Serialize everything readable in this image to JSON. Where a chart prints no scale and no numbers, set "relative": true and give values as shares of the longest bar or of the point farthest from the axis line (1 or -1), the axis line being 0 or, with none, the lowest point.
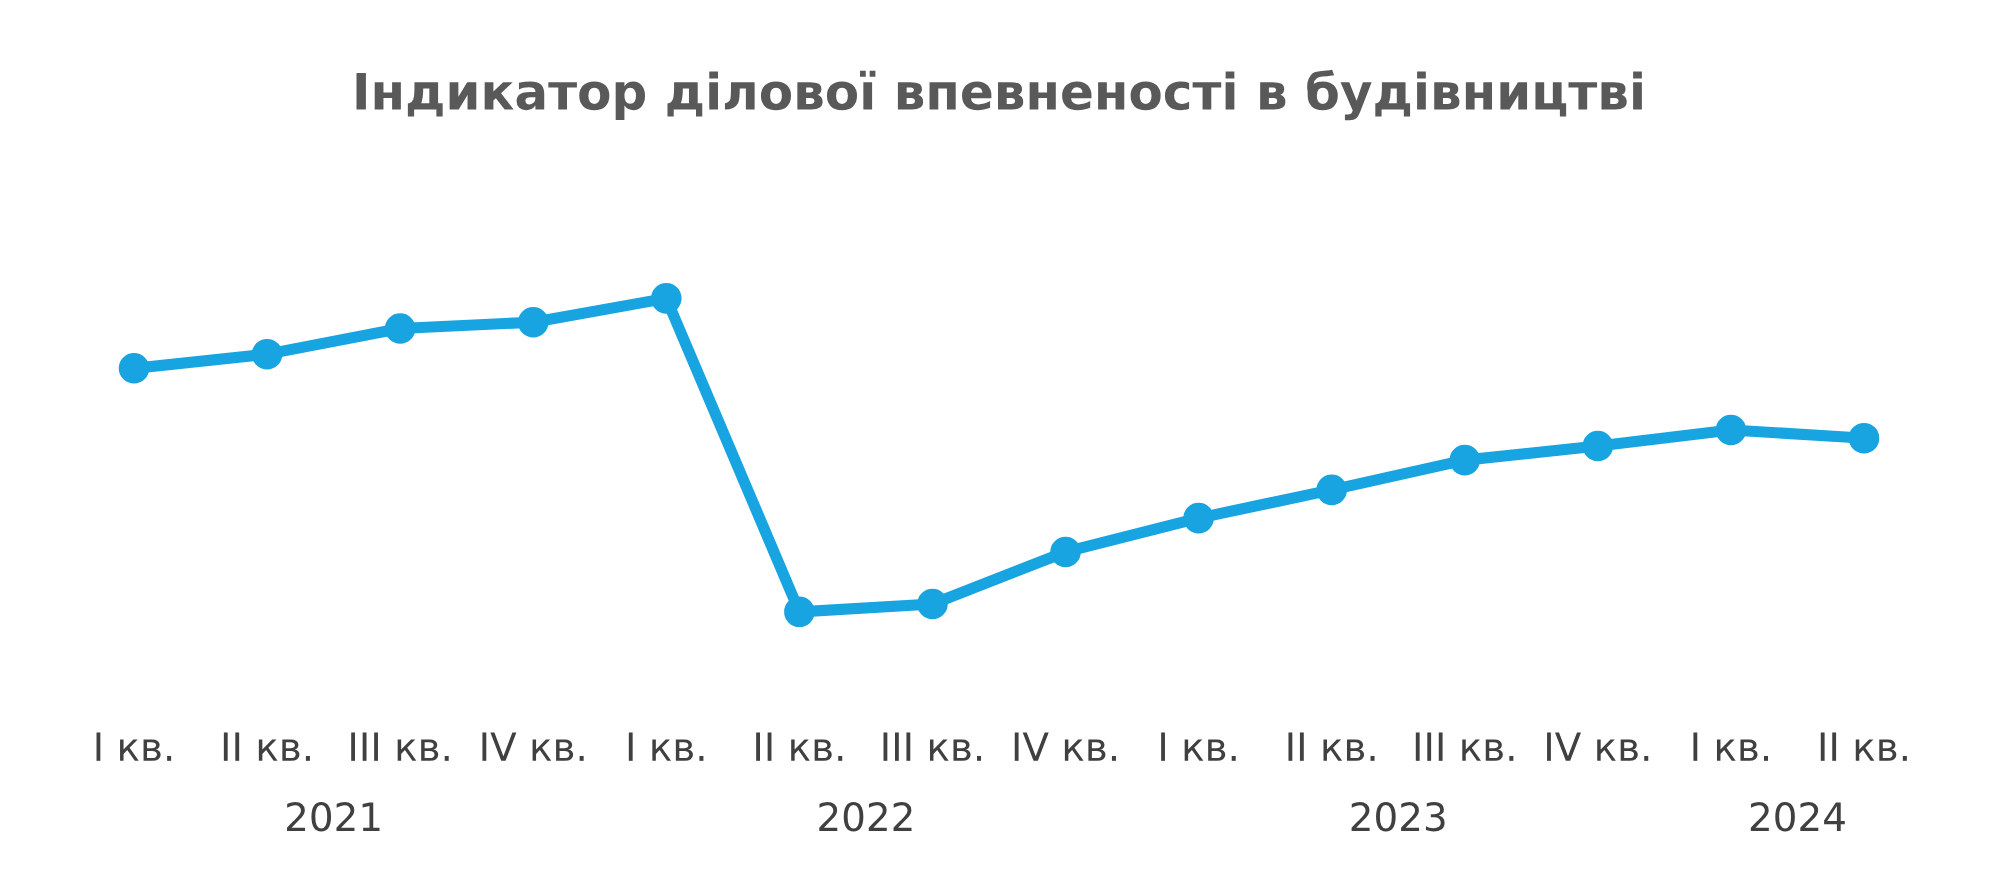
{
  "chart_data": {
    "type": "line",
    "title": "Індикатор ділової впевненості в будівництві",
    "categories": [
      "I кв.",
      "II кв.",
      "III кв.",
      "IV кв.",
      "I кв.",
      "II кв.",
      "III кв.",
      "IV кв.",
      "I кв.",
      "II кв.",
      "III кв.",
      "IV кв.",
      "I кв.",
      "II кв."
    ],
    "series": [
      {
        "color": "#18a4e0",
        "values": [
          0.777,
          0.822,
          0.904,
          0.924,
          1,
          0,
          0.025,
          0.191,
          0.299,
          0.389,
          0.484,
          0.529,
          0.58,
          0.554
        ]
      }
    ],
    "relative": true,
    "marker": "circle",
    "line_style": "solid",
    "grid": false,
    "legend": false,
    "annotations": [
      "2021",
      "2022",
      "2023",
      "2024"
    ]
  }
}
